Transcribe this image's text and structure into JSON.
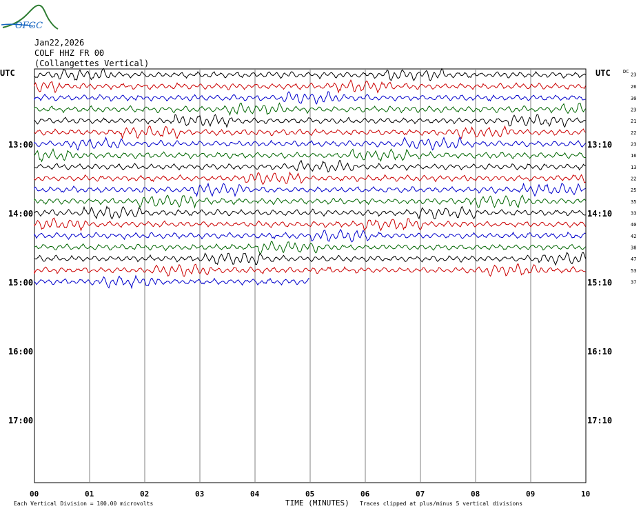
{
  "logo": {
    "text": "OFGC"
  },
  "header": {
    "date": "Jan22,2026",
    "station": "COLF HHZ FR 00",
    "description": "(Collangettes Vertical)"
  },
  "left_axis_title": "UTC",
  "right_axis_title": "UTC",
  "dc_header": "DC",
  "footer": {
    "scale_note": "Each Vertical Division =  100.00 microvolts",
    "x_axis_label": "TIME (MINUTES)",
    "clip_note": "Traces clipped at plus/minus 5 vertical divisions"
  },
  "colors": {
    "trace_cycle": [
      "#000000",
      "#cc0000",
      "#0000cc",
      "#006600"
    ],
    "grid": "#808080"
  },
  "chart_data": {
    "type": "line",
    "subtype": "helicorder",
    "xlabel": "TIME (MINUTES)",
    "xlim": [
      0,
      10
    ],
    "x_ticks": [
      "00",
      "01",
      "02",
      "03",
      "04",
      "05",
      "06",
      "07",
      "08",
      "09",
      "10"
    ],
    "left_hour_labels": [
      "13:00",
      "14:00",
      "15:00",
      "16:00",
      "17:00"
    ],
    "right_hour_labels": [
      "13:10",
      "14:10",
      "15:10",
      "16:10",
      "17:10"
    ],
    "rows_per_hour": 6,
    "minutes_per_row": 10,
    "start_hour_offset_rows": -6,
    "dc_offsets": [
      "23",
      "26",
      "30",
      "23",
      "21",
      "22",
      "23",
      "16",
      "13",
      "22",
      "25",
      "35",
      "33",
      "40",
      "42",
      "38",
      "47",
      "53",
      "37"
    ],
    "trace_count": 19,
    "last_trace_end_minute": 5,
    "trace_color_cycle": [
      "black",
      "red",
      "blue",
      "green"
    ],
    "grid": true
  }
}
